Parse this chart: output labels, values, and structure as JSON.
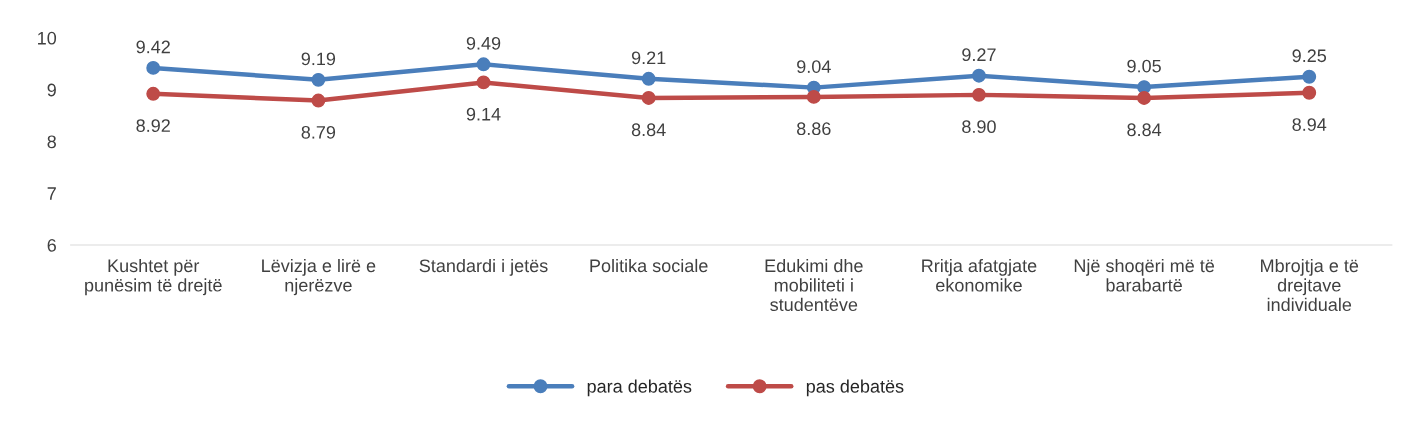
{
  "chart_data": {
    "type": "line",
    "categories": [
      "Kushtet për punësim të drejtë",
      "Lëvizja e lirë e njerëzve",
      "Standardi i jetës",
      "Politika sociale",
      "Edukimi dhe mobiliteti i studentëve",
      "Rritja afatgjate ekonomike",
      "Një shoqëri më të barabartë",
      "Mbrojtja e të drejtave individuale"
    ],
    "series": [
      {
        "name": "para debatës",
        "color": "#4a7ebb",
        "values": [
          9.42,
          9.19,
          9.49,
          9.21,
          9.04,
          9.27,
          9.05,
          9.25
        ],
        "value_labels": [
          "9.42",
          "9.19",
          "9.49",
          "9.21",
          "9.04",
          "9.27",
          "9.05",
          "9.25"
        ]
      },
      {
        "name": "pas debatës",
        "color": "#be4b48",
        "values": [
          8.92,
          8.79,
          9.14,
          8.84,
          8.86,
          8.9,
          8.84,
          8.94
        ],
        "value_labels": [
          "8.92",
          "8.79",
          "9.14",
          "8.84",
          "8.86",
          "8.90",
          "8.84",
          "8.94"
        ]
      }
    ],
    "ylim": [
      6,
      10
    ],
    "yticks": [
      6,
      7,
      8,
      9,
      10
    ],
    "grid": false,
    "legend": "bottom",
    "marker": "circle",
    "line_style": "solid"
  }
}
